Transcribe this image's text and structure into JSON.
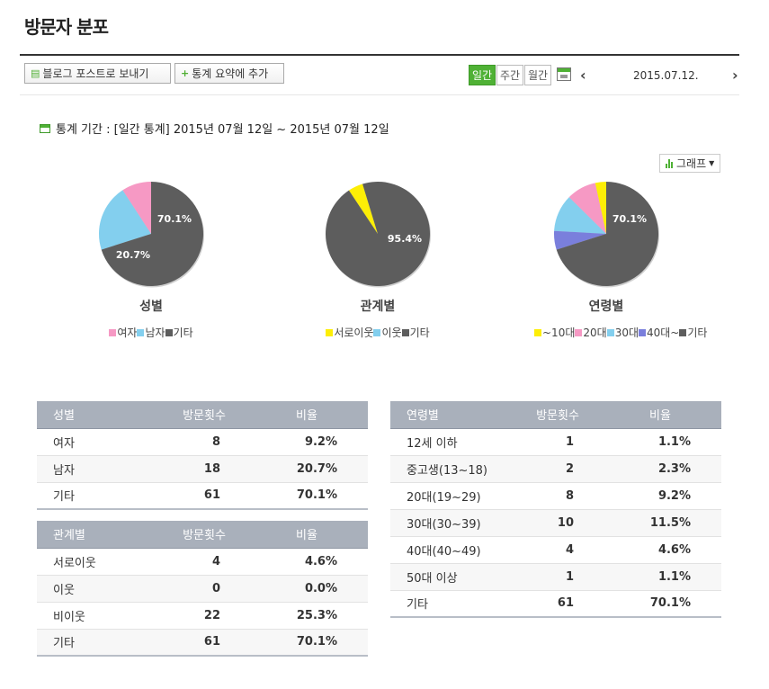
{
  "page": {
    "title": "방문자 분포"
  },
  "toolbar": {
    "blog_post_label": "블로그 포스트로 보내기",
    "add_summary_label": "통계 요약에 추가",
    "periods": [
      "일간",
      "주간",
      "월간"
    ],
    "active_period": "일간",
    "date": "2015.07.12."
  },
  "period_info": "통계 기간 : [일간 통계] 2015년 07월 12일 ~ 2015년 07월 12일",
  "graph_button_label": "그래프",
  "colors": {
    "pink": "#f699c4",
    "blue": "#83cfee",
    "gray": "#5d5d5d",
    "yellow": "#fdee06",
    "purple": "#7a7fdc",
    "green": "#4fb135",
    "header": "#a9b0bb"
  },
  "chart_data": [
    {
      "type": "pie",
      "title": "성별",
      "labels": [
        "여자",
        "남자",
        "기타"
      ],
      "values": [
        9.2,
        20.7,
        70.1
      ],
      "colors": [
        "#f699c4",
        "#83cfee",
        "#5d5d5d"
      ],
      "data_labels": [
        "",
        "20.7%",
        "70.1%"
      ]
    },
    {
      "type": "pie",
      "title": "관계별",
      "labels": [
        "서로이웃",
        "이웃",
        "기타"
      ],
      "values": [
        4.6,
        0.0,
        95.4
      ],
      "colors": [
        "#fdee06",
        "#83cfee",
        "#5d5d5d"
      ],
      "data_labels": [
        "",
        "",
        "95.4%"
      ]
    },
    {
      "type": "pie",
      "title": "연령별",
      "labels": [
        "~10대",
        "20대",
        "30대",
        "40대~",
        "기타"
      ],
      "values": [
        3.4,
        9.2,
        11.5,
        5.8,
        70.1
      ],
      "colors": [
        "#fdee06",
        "#f699c4",
        "#83cfee",
        "#7a7fdc",
        "#5d5d5d"
      ],
      "data_labels": [
        "",
        "",
        "",
        "",
        "70.1%"
      ]
    }
  ],
  "tables": {
    "gender": {
      "headers": [
        "성별",
        "방문횟수",
        "비율"
      ],
      "rows": [
        {
          "label": "여자",
          "count": "8",
          "ratio": "9.2%"
        },
        {
          "label": "남자",
          "count": "18",
          "ratio": "20.7%"
        },
        {
          "label": "기타",
          "count": "61",
          "ratio": "70.1%"
        }
      ]
    },
    "relation": {
      "headers": [
        "관계별",
        "방문횟수",
        "비율"
      ],
      "rows": [
        {
          "label": "서로이웃",
          "count": "4",
          "ratio": "4.6%"
        },
        {
          "label": "이웃",
          "count": "0",
          "ratio": "0.0%"
        },
        {
          "label": "비이웃",
          "count": "22",
          "ratio": "25.3%"
        },
        {
          "label": "기타",
          "count": "61",
          "ratio": "70.1%"
        }
      ]
    },
    "age": {
      "headers": [
        "연령별",
        "방문횟수",
        "비율"
      ],
      "rows": [
        {
          "label": "12세 이하",
          "count": "1",
          "ratio": "1.1%"
        },
        {
          "label": "중고생(13~18)",
          "count": "2",
          "ratio": "2.3%"
        },
        {
          "label": "20대(19~29)",
          "count": "8",
          "ratio": "9.2%"
        },
        {
          "label": "30대(30~39)",
          "count": "10",
          "ratio": "11.5%"
        },
        {
          "label": "40대(40~49)",
          "count": "4",
          "ratio": "4.6%"
        },
        {
          "label": "50대 이상",
          "count": "1",
          "ratio": "1.1%"
        },
        {
          "label": "기타",
          "count": "61",
          "ratio": "70.1%"
        }
      ]
    }
  }
}
